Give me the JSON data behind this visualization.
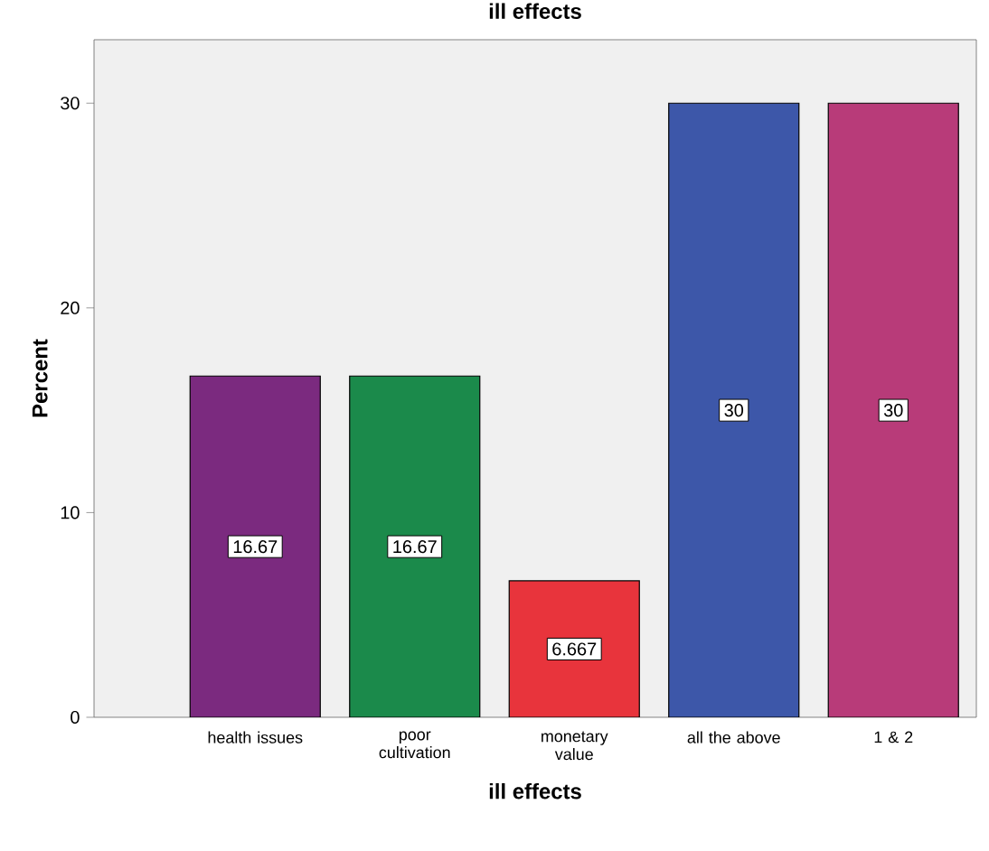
{
  "chart_data": {
    "type": "bar",
    "title": "ill effects",
    "xlabel": "ill effects",
    "ylabel": "Percent",
    "categories": [
      "health issues",
      "poor cultivation",
      "monetary value",
      "all the above",
      "1 & 2"
    ],
    "values": [
      16.67,
      16.67,
      6.667,
      30,
      30
    ],
    "value_labels": [
      "16.67",
      "16.67",
      "6.667",
      "30",
      "30"
    ],
    "colors": [
      "#7b2a7f",
      "#1b8a4b",
      "#e8343c",
      "#3d57a9",
      "#b83b79"
    ],
    "ylim": [
      0,
      33.1
    ],
    "yticks": [
      0,
      10,
      20,
      30
    ],
    "grid": false
  }
}
